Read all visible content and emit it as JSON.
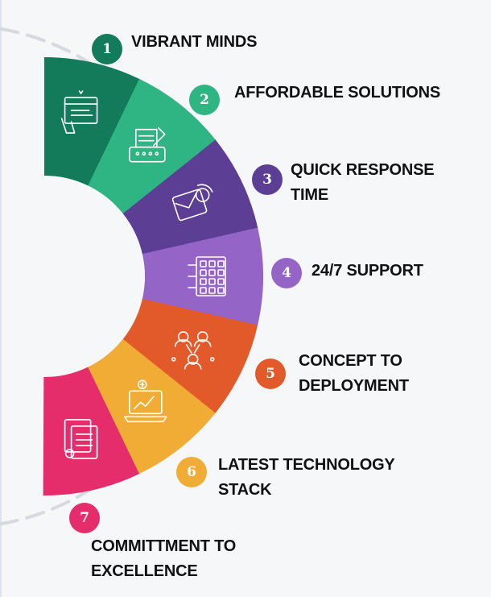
{
  "colors": {
    "background": "#f6f7f9",
    "dashes": "#d6d9de",
    "icon_stroke": "#ffffff"
  },
  "items": [
    {
      "number": "1",
      "line1": "VIBRANT MINDS",
      "line2": "",
      "color": "#137a5a",
      "icon": "web-design-icon"
    },
    {
      "number": "2",
      "line1": "AFFORDABLE SOLUTIONS",
      "line2": "",
      "color": "#2fb484",
      "icon": "typewriter-icon"
    },
    {
      "number": "3",
      "line1": "QUICK RESPONSE",
      "line2": "TIME",
      "color": "#5d3e95",
      "icon": "message-notification-icon"
    },
    {
      "number": "4",
      "line1": "24/7 SUPPORT",
      "line2": "",
      "color": "#9465c7",
      "icon": "calendar-grid-icon"
    },
    {
      "number": "5",
      "line1": "CONCEPT TO",
      "line2": "DEPLOYMENT",
      "color": "#e2592a",
      "icon": "team-network-icon"
    },
    {
      "number": "6",
      "line1": "LATEST TECHNOLOGY",
      "line2": "STACK",
      "color": "#f0ac34",
      "icon": "laptop-growth-icon"
    },
    {
      "number": "7",
      "line1": "COMMITTMENT TO",
      "line2": "EXCELLENCE",
      "color": "#e42d6a",
      "icon": "documents-icon"
    }
  ]
}
